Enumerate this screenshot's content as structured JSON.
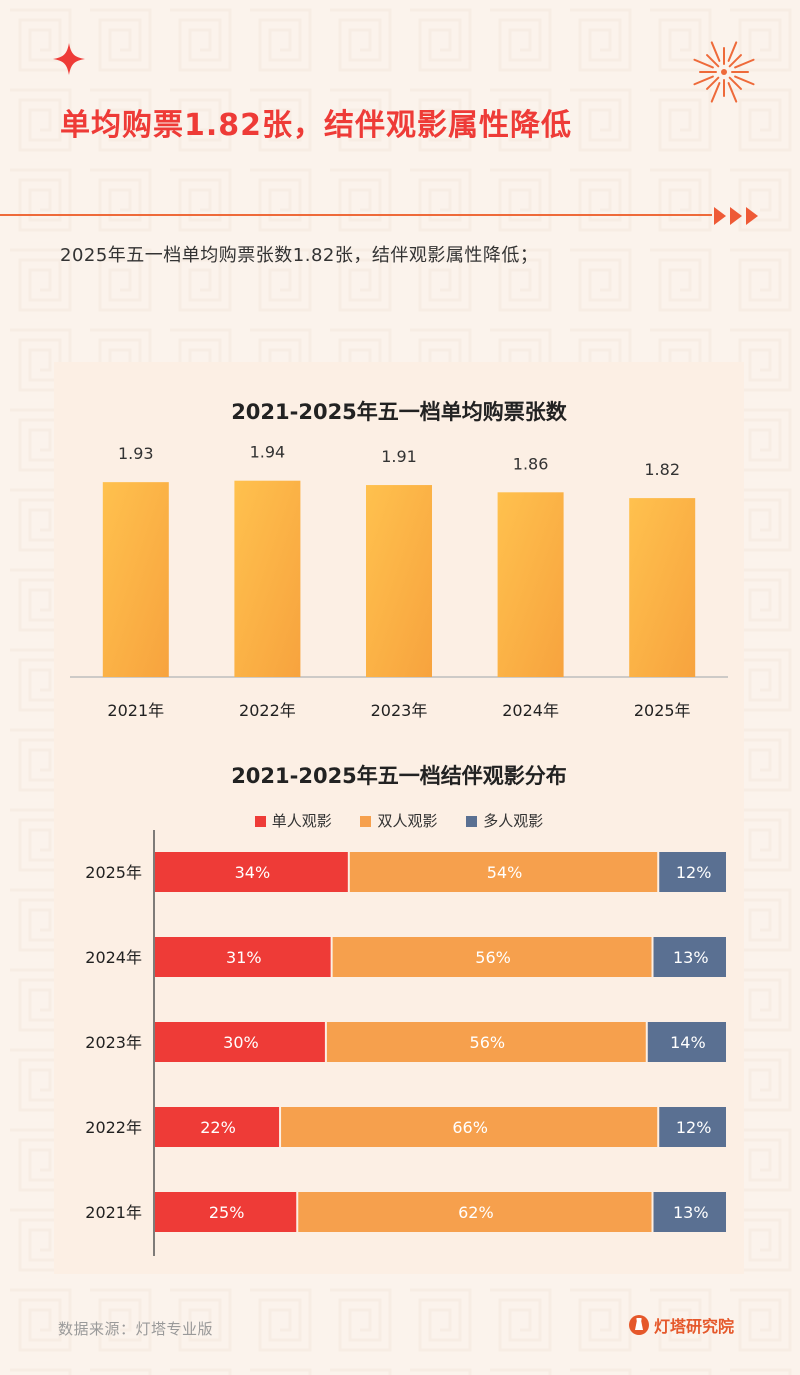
{
  "header": {
    "title": "单均购票1.82张，结伴观影属性降低",
    "subtitle": "2025年五一档单均购票张数1.82张，结伴观影属性降低；"
  },
  "colors": {
    "accent": "#ee3b37",
    "bar": "#fbb244",
    "single": "#ee3b37",
    "double": "#f6a04d",
    "multi": "#5a7092",
    "panel": "#fcefe4"
  },
  "chart_data": [
    {
      "type": "bar",
      "title": "2021-2025年五一档单均购票张数",
      "categories": [
        "2021年",
        "2022年",
        "2023年",
        "2024年",
        "2025年"
      ],
      "values": [
        1.93,
        1.94,
        1.91,
        1.86,
        1.82
      ],
      "data_labels": [
        "1.93",
        "1.94",
        "1.91",
        "1.86",
        "1.82"
      ],
      "ylim": [
        1.0,
        2.0
      ],
      "grid": false
    },
    {
      "type": "bar",
      "orientation": "horizontal-stacked",
      "title": "2021-2025年五一档结伴观影分布",
      "categories": [
        "2025年",
        "2024年",
        "2023年",
        "2022年",
        "2021年"
      ],
      "series": [
        {
          "name": "单人观影",
          "values": [
            34,
            31,
            30,
            22,
            25
          ]
        },
        {
          "name": "双人观影",
          "values": [
            54,
            56,
            56,
            66,
            62
          ]
        },
        {
          "name": "多人观影",
          "values": [
            12,
            13,
            14,
            12,
            13
          ]
        }
      ],
      "unit": "%",
      "legend": "top"
    }
  ],
  "footer": {
    "source": "数据来源：灯塔专业版",
    "brand": "灯塔研究院"
  }
}
